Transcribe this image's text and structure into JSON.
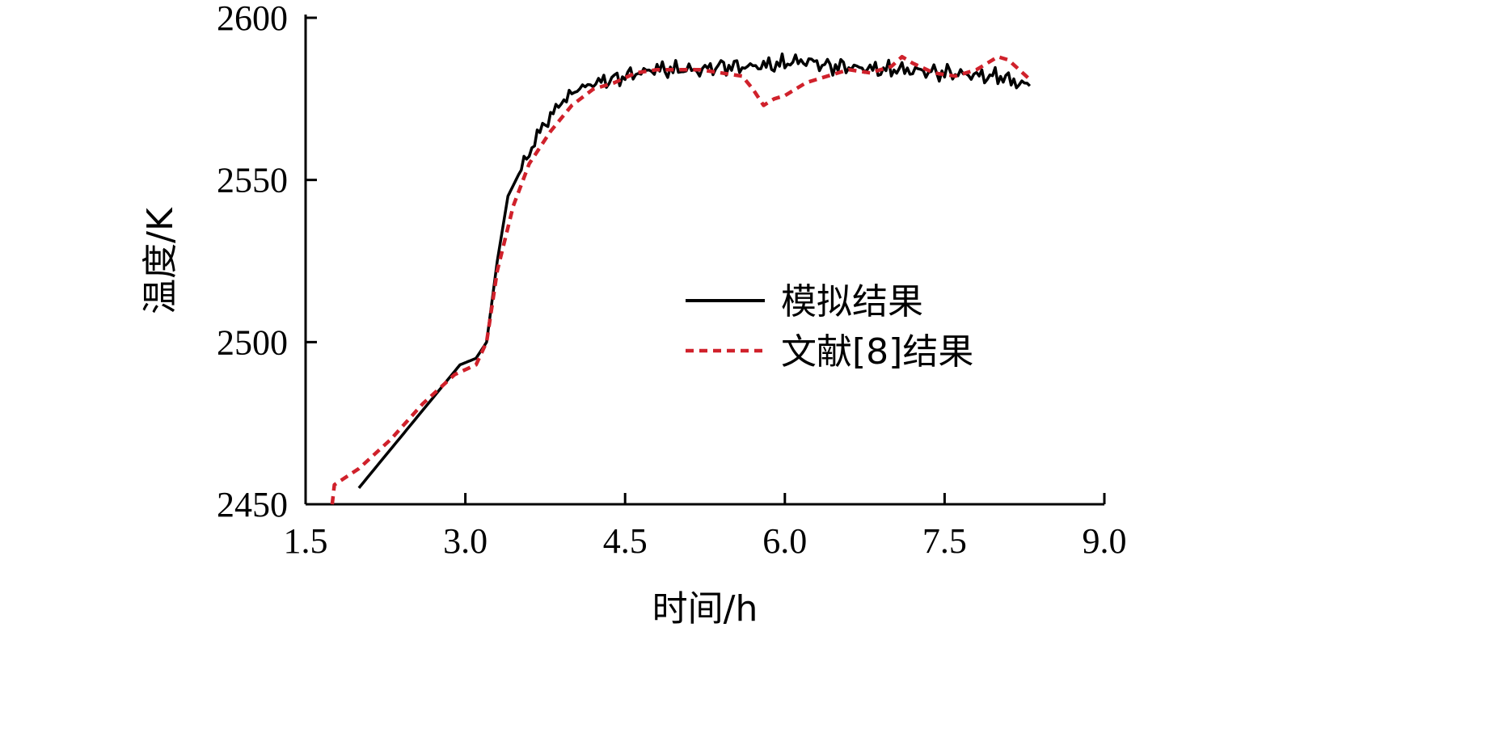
{
  "chart_data": {
    "type": "line",
    "xlabel": "时间/h",
    "ylabel": "温度/K",
    "xlim": [
      1.5,
      9.0
    ],
    "ylim": [
      2450,
      2600
    ],
    "xticks": [
      "1.5",
      "3.0",
      "4.5",
      "6.0",
      "7.5",
      "9.0"
    ],
    "yticks": [
      "2450",
      "2500",
      "2550",
      "2600"
    ],
    "grid": false,
    "legend_position": "center-right",
    "series": [
      {
        "name": "模拟结果",
        "color": "#000000",
        "style": "solid",
        "points": [
          [
            2.0,
            2455
          ],
          [
            2.5,
            2475
          ],
          [
            2.95,
            2493
          ],
          [
            3.1,
            2495
          ],
          [
            3.2,
            2500
          ],
          [
            3.3,
            2525
          ],
          [
            3.4,
            2545
          ],
          [
            3.55,
            2555
          ],
          [
            3.7,
            2565
          ],
          [
            3.85,
            2572
          ],
          [
            4.0,
            2577
          ],
          [
            4.2,
            2580
          ],
          [
            4.4,
            2581
          ],
          [
            4.6,
            2583
          ],
          [
            4.8,
            2584
          ],
          [
            5.0,
            2584
          ],
          [
            5.2,
            2584
          ],
          [
            5.4,
            2585
          ],
          [
            5.6,
            2585
          ],
          [
            5.8,
            2585
          ],
          [
            6.0,
            2586
          ],
          [
            6.2,
            2587
          ],
          [
            6.4,
            2585
          ],
          [
            6.6,
            2585
          ],
          [
            6.8,
            2584
          ],
          [
            7.0,
            2584
          ],
          [
            7.2,
            2584
          ],
          [
            7.4,
            2583
          ],
          [
            7.6,
            2583
          ],
          [
            7.8,
            2582
          ],
          [
            8.0,
            2582
          ],
          [
            8.2,
            2580
          ],
          [
            8.3,
            2579
          ]
        ]
      },
      {
        "name": "文献[8]结果",
        "color": "#d0212b",
        "style": "dashed",
        "points": [
          [
            1.75,
            2450
          ],
          [
            1.77,
            2456
          ],
          [
            2.0,
            2461
          ],
          [
            2.3,
            2470
          ],
          [
            2.6,
            2481
          ],
          [
            2.9,
            2490
          ],
          [
            3.1,
            2493
          ],
          [
            3.2,
            2500
          ],
          [
            3.3,
            2522
          ],
          [
            3.45,
            2542
          ],
          [
            3.6,
            2555
          ],
          [
            3.8,
            2565
          ],
          [
            4.0,
            2573
          ],
          [
            4.2,
            2578
          ],
          [
            4.4,
            2580
          ],
          [
            4.6,
            2583
          ],
          [
            4.8,
            2584
          ],
          [
            5.0,
            2584
          ],
          [
            5.2,
            2584
          ],
          [
            5.4,
            2583
          ],
          [
            5.6,
            2582
          ],
          [
            5.7,
            2578
          ],
          [
            5.8,
            2573
          ],
          [
            5.9,
            2575
          ],
          [
            6.0,
            2576
          ],
          [
            6.2,
            2580
          ],
          [
            6.4,
            2582
          ],
          [
            6.6,
            2584
          ],
          [
            6.8,
            2583
          ],
          [
            7.0,
            2585
          ],
          [
            7.1,
            2588
          ],
          [
            7.2,
            2586
          ],
          [
            7.4,
            2583
          ],
          [
            7.6,
            2582
          ],
          [
            7.8,
            2584
          ],
          [
            8.0,
            2588
          ],
          [
            8.1,
            2587
          ],
          [
            8.2,
            2584
          ],
          [
            8.3,
            2581
          ]
        ]
      }
    ]
  }
}
